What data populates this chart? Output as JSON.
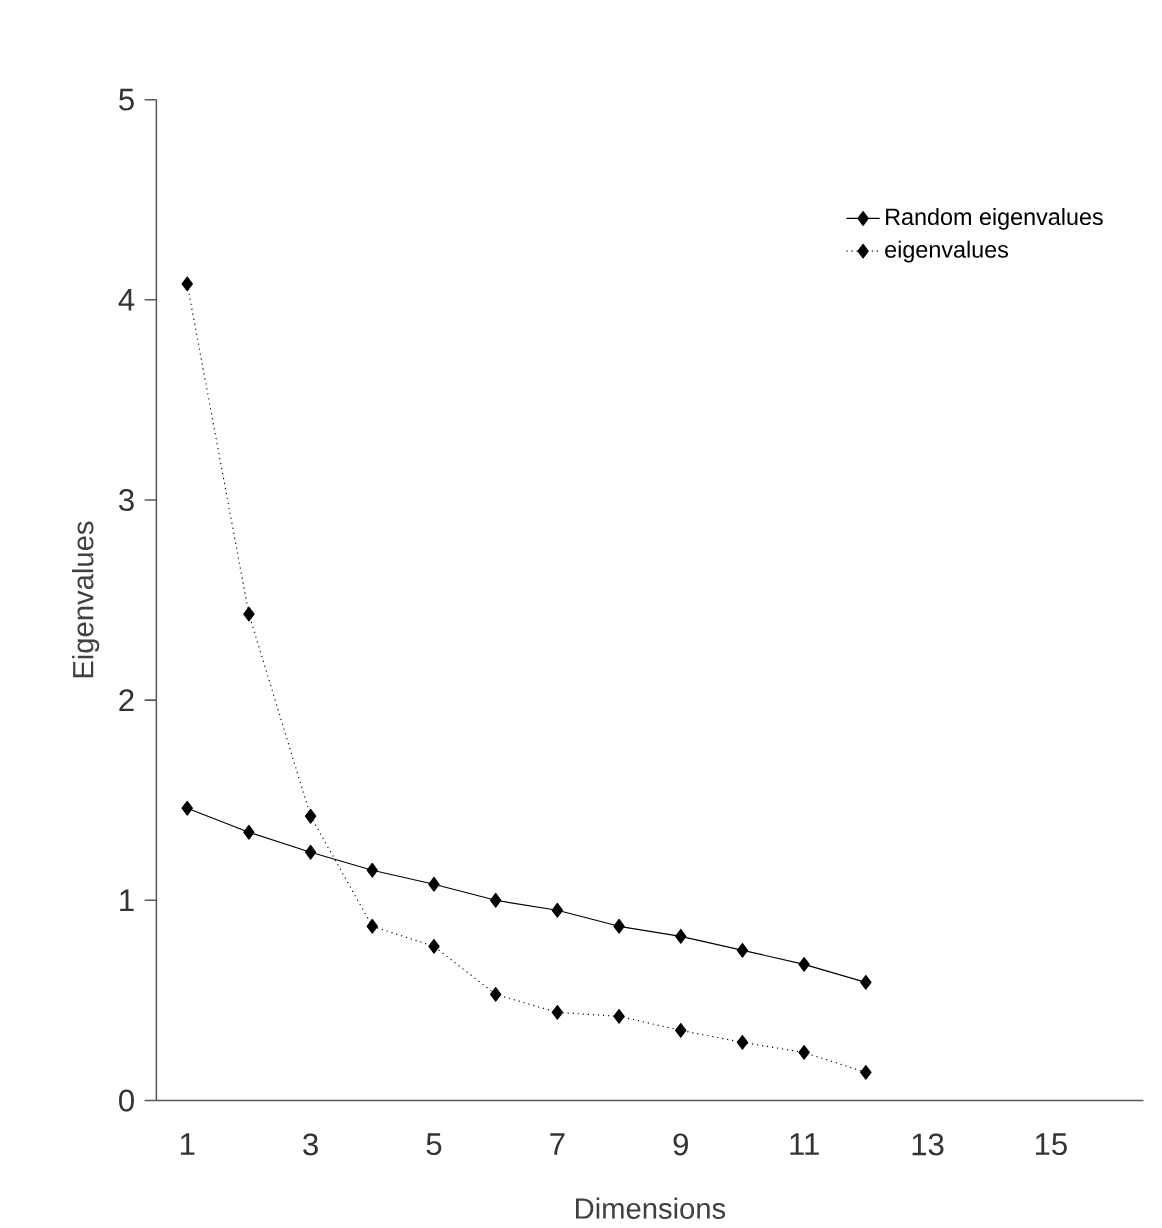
{
  "chart_data": {
    "type": "line",
    "xlabel": "Dimensions",
    "ylabel": "Eigenvalues",
    "categories": [
      "1",
      null,
      "3",
      null,
      "5",
      null,
      "7",
      null,
      "9",
      null,
      "11",
      null,
      "13",
      null,
      "15",
      null
    ],
    "series": [
      {
        "name": "Random eigenvalues",
        "color": "#000000",
        "line_style": "solid",
        "values": [
          1.46,
          1.34,
          1.24,
          1.15,
          1.08,
          1.0,
          0.95,
          0.87,
          0.82,
          0.75,
          0.68,
          0.59,
          null,
          null,
          null,
          null
        ]
      },
      {
        "name": "eigenvalues",
        "color": "#000000",
        "line_style": "dotted",
        "values": [
          4.08,
          2.43,
          1.42,
          0.87,
          0.77,
          0.53,
          0.44,
          0.42,
          0.35,
          0.29,
          0.24,
          0.14,
          null,
          null,
          null,
          null
        ]
      }
    ],
    "ylim": [
      0,
      5
    ],
    "yticks": [
      0,
      1,
      2,
      3,
      4,
      5
    ],
    "marker": "diamond",
    "legend": "top right",
    "grid": false
  }
}
